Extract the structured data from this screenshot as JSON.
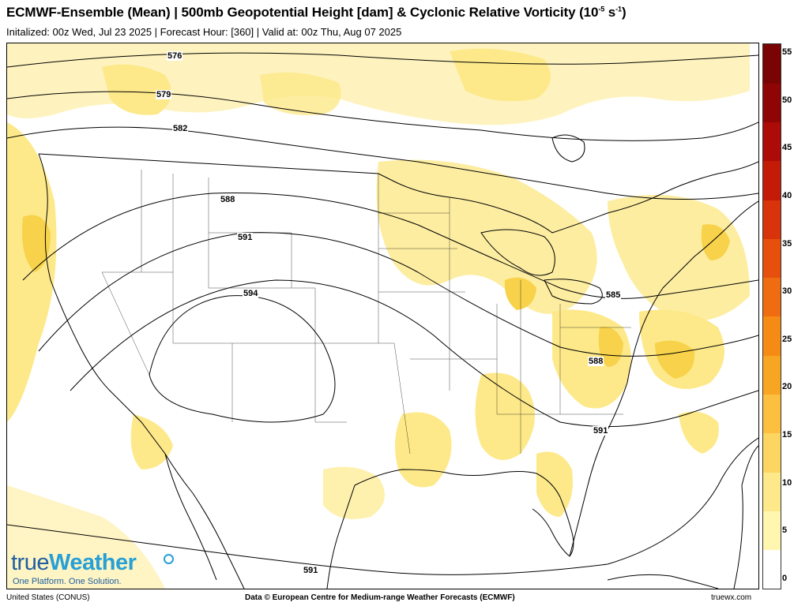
{
  "header": {
    "title_main": "ECMWF-Ensemble (Mean) | 500mb Geopotential Height [dam] & Cyclonic Relative Vorticity (10",
    "title_exp1": "-5",
    "title_mid": " s",
    "title_exp2": "-1",
    "title_end": ")",
    "subtitle": "Initalized: 00z Wed, Jul 23 2025  |  Forecast Hour: [360]  |  Valid at: 00z Thu, Aug 07 2025"
  },
  "map": {
    "region": "United States (CONUS)",
    "contour_labels": [
      "576",
      "579",
      "582",
      "588",
      "591",
      "594",
      "585",
      "588",
      "591",
      "591"
    ],
    "shading_color": "#fde98a",
    "shading_strong": "#f7d24a"
  },
  "colorbar": {
    "ticks": [
      "55",
      "50",
      "45",
      "40",
      "35",
      "30",
      "25",
      "20",
      "15",
      "10",
      "5",
      "0"
    ],
    "colors": [
      "#ffffff",
      "#fff6b0",
      "#fee98a",
      "#fdd561",
      "#fcbf3f",
      "#f9a524",
      "#f58a14",
      "#ef6d10",
      "#e6500c",
      "#d8330a",
      "#c41a08",
      "#ac0b07",
      "#8f0505",
      "#7a0303"
    ]
  },
  "footer": {
    "left": "United States (CONUS)",
    "center": "Data © European Centre for Medium-range Weather Forecasts (ECMWF)",
    "right": "truewx.com"
  },
  "brand": {
    "logo_part1": "true",
    "logo_part2": "Weather",
    "tagline": "One Platform. One Solution."
  }
}
